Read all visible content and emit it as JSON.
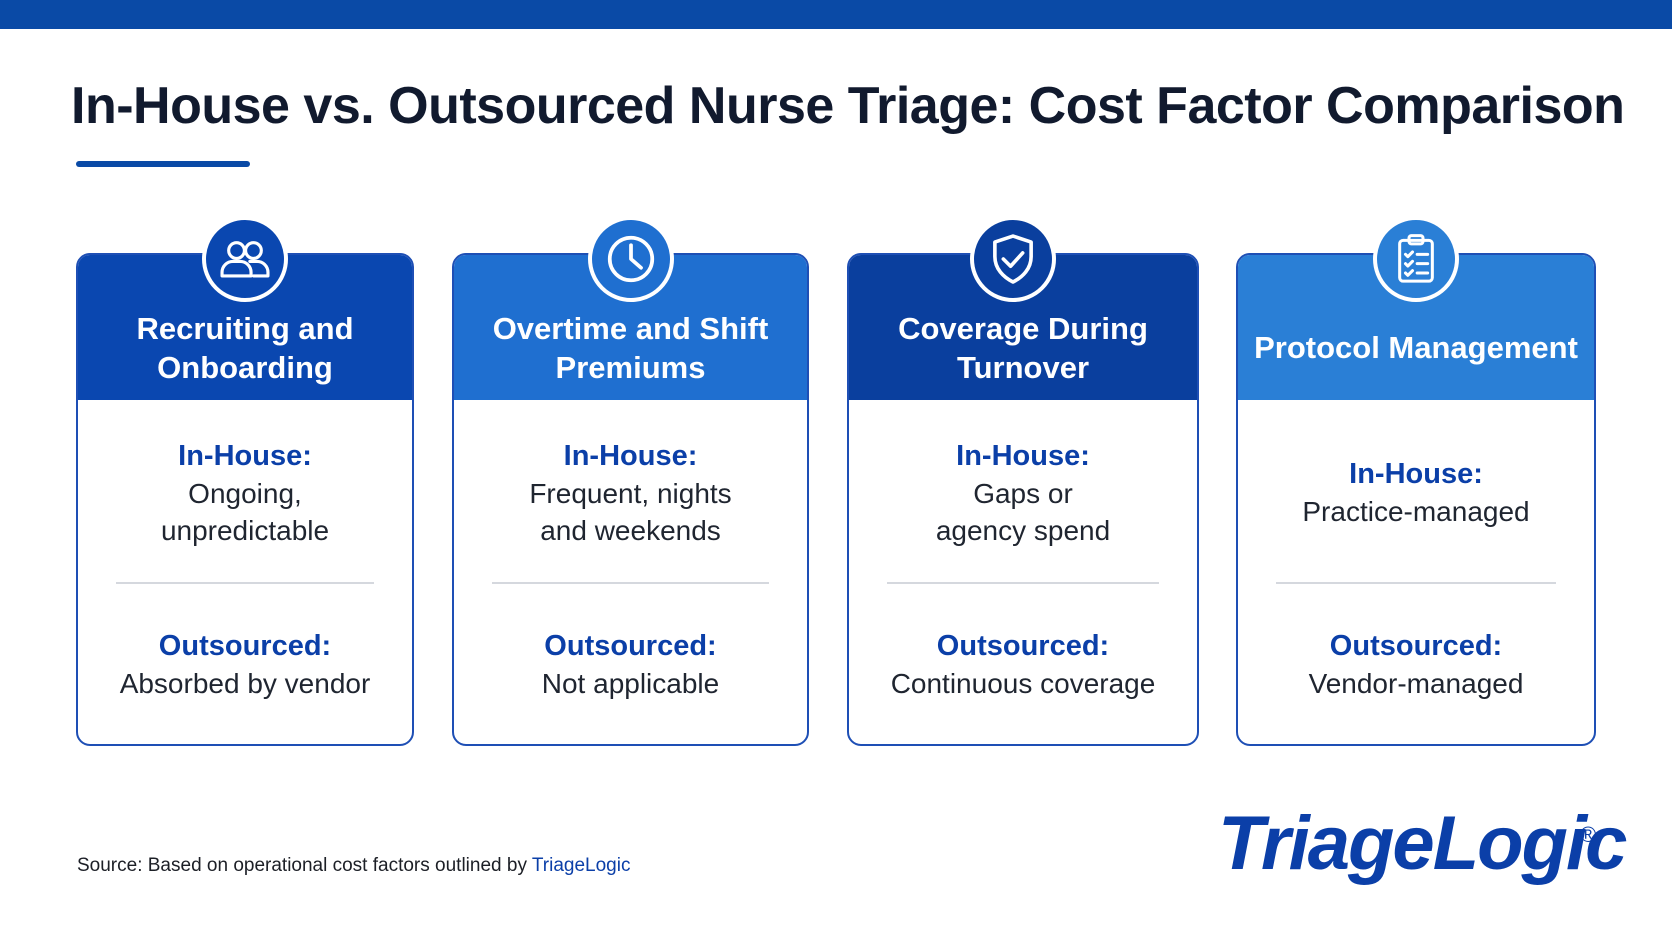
{
  "header": {
    "title": "In-House vs. Outsourced Nurse Triage: Cost Factor Comparison"
  },
  "cards": [
    {
      "title": "Recruiting and Onboarding",
      "icon": "people-icon",
      "inhouse_label": "In-House:",
      "inhouse_value": "Ongoing,\nunpredictable",
      "outsourced_label": "Outsourced:",
      "outsourced_value": "Absorbed by vendor"
    },
    {
      "title": "Overtime and Shift Premiums",
      "icon": "clock-icon",
      "inhouse_label": "In-House:",
      "inhouse_value": "Frequent, nights\nand weekends",
      "outsourced_label": "Outsourced:",
      "outsourced_value": "Not applicable"
    },
    {
      "title": "Coverage During Turnover",
      "icon": "shield-check-icon",
      "inhouse_label": "In-House:",
      "inhouse_value": "Gaps or\nagency spend",
      "outsourced_label": "Outsourced:",
      "outsourced_value": "Continuous coverage"
    },
    {
      "title": "Protocol Management",
      "icon": "clipboard-checklist-icon",
      "inhouse_label": "In-House:",
      "inhouse_value": "Practice-managed",
      "outsourced_label": "Outsourced:",
      "outsourced_value": "Vendor-managed"
    }
  ],
  "footer": {
    "source_prefix": "Source: Based on operational cost factors outlined by ",
    "source_link": "TriageLogic",
    "logo_text": "TriageLogic",
    "logo_mark": "®"
  },
  "colors": {
    "brand_blue": "#0a4aa6",
    "card_header_1": "#0a47b0",
    "card_header_2": "#1f6fd0",
    "card_header_3": "#0a3f9e",
    "card_header_4": "#2a7fd6",
    "label_blue": "#0b3fa8"
  }
}
